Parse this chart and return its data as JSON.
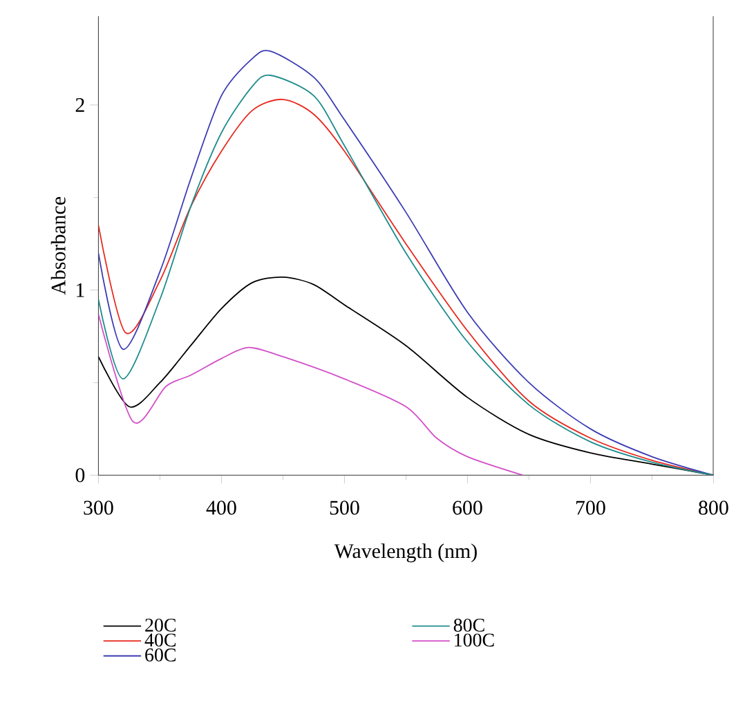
{
  "chart_data": {
    "type": "line",
    "xlabel": "Wavelength (nm)",
    "ylabel": "Absorbance",
    "xlim": [
      300,
      800
    ],
    "ylim": [
      0,
      2.48
    ],
    "xticks": [
      300,
      400,
      500,
      600,
      700,
      800
    ],
    "yticks": [
      0,
      1,
      2
    ],
    "legend": "bottom",
    "grid": false,
    "series": [
      {
        "name": "20C",
        "color": "#000000",
        "x": [
          300,
          325,
          350,
          375,
          400,
          425,
          450,
          475,
          500,
          550,
          600,
          650,
          700,
          750,
          800
        ],
        "values": [
          0.64,
          0.37,
          0.5,
          0.7,
          0.9,
          1.04,
          1.07,
          1.03,
          0.92,
          0.7,
          0.42,
          0.22,
          0.12,
          0.06,
          0
        ]
      },
      {
        "name": "40C",
        "color": "#e8281e",
        "x": [
          300,
          322,
          350,
          375,
          400,
          425,
          450,
          475,
          500,
          550,
          600,
          650,
          700,
          750,
          800
        ],
        "values": [
          1.35,
          0.77,
          1.05,
          1.45,
          1.75,
          1.97,
          2.03,
          1.95,
          1.75,
          1.25,
          0.78,
          0.4,
          0.2,
          0.08,
          0
        ]
      },
      {
        "name": "60C",
        "color": "#3c3cb4",
        "x": [
          300,
          320,
          350,
          375,
          400,
          425,
          440,
          475,
          500,
          550,
          600,
          650,
          700,
          750,
          800
        ],
        "values": [
          1.2,
          0.68,
          1.1,
          1.6,
          2.05,
          2.25,
          2.29,
          2.15,
          1.92,
          1.42,
          0.88,
          0.5,
          0.25,
          0.1,
          0
        ]
      },
      {
        "name": "80C",
        "color": "#1e8c8c",
        "x": [
          300,
          320,
          350,
          375,
          400,
          425,
          440,
          475,
          500,
          550,
          600,
          650,
          700,
          750,
          800
        ],
        "values": [
          0.95,
          0.52,
          0.95,
          1.45,
          1.85,
          2.1,
          2.16,
          2.05,
          1.78,
          1.2,
          0.72,
          0.38,
          0.18,
          0.07,
          0
        ]
      },
      {
        "name": "100C",
        "color": "#d250c8",
        "x": [
          300,
          328,
          355,
          375,
          400,
          422,
          450,
          500,
          550,
          575,
          600,
          645
        ],
        "values": [
          0.87,
          0.29,
          0.48,
          0.54,
          0.63,
          0.69,
          0.64,
          0.52,
          0.37,
          0.2,
          0.1,
          0
        ]
      }
    ]
  }
}
